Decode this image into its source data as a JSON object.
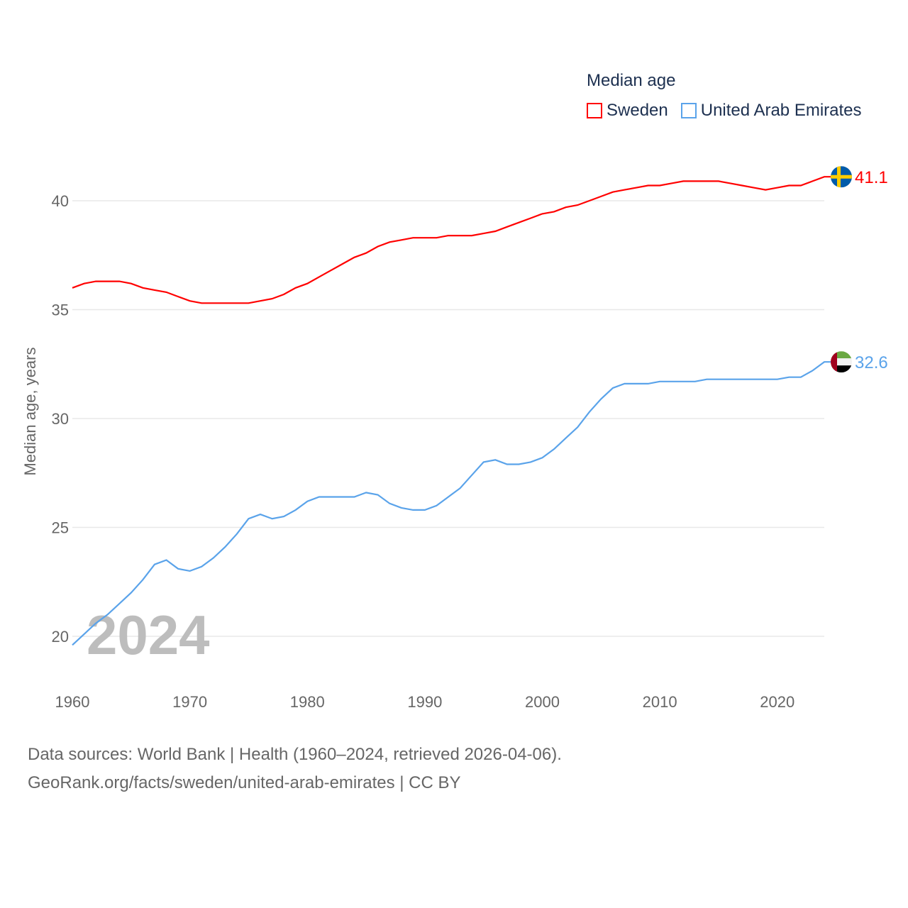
{
  "chart_data": {
    "type": "line",
    "title": "Median age",
    "ylabel": "Median age, years",
    "xlabel": "",
    "xlim": [
      1960,
      2024
    ],
    "ylim": [
      18.9,
      42.2
    ],
    "yticks": [
      20,
      25,
      30,
      35,
      40
    ],
    "xticks": [
      1960,
      1970,
      1980,
      1990,
      2000,
      2010,
      2020
    ],
    "grid": true,
    "legend_position": "top-right",
    "year_watermark": "2024",
    "x": [
      1960,
      1961,
      1962,
      1963,
      1964,
      1965,
      1966,
      1967,
      1968,
      1969,
      1970,
      1971,
      1972,
      1973,
      1974,
      1975,
      1976,
      1977,
      1978,
      1979,
      1980,
      1981,
      1982,
      1983,
      1984,
      1985,
      1986,
      1987,
      1988,
      1989,
      1990,
      1991,
      1992,
      1993,
      1994,
      1995,
      1996,
      1997,
      1998,
      1999,
      2000,
      2001,
      2002,
      2003,
      2004,
      2005,
      2006,
      2007,
      2008,
      2009,
      2010,
      2011,
      2012,
      2013,
      2014,
      2015,
      2016,
      2017,
      2018,
      2019,
      2020,
      2021,
      2022,
      2023,
      2024
    ],
    "series": [
      {
        "name": "Sweden",
        "color": "#ff0000",
        "end_label": "41.1",
        "flag": "sweden",
        "values": [
          36.0,
          36.2,
          36.3,
          36.3,
          36.3,
          36.2,
          36.0,
          35.9,
          35.8,
          35.6,
          35.4,
          35.3,
          35.3,
          35.3,
          35.3,
          35.3,
          35.4,
          35.5,
          35.7,
          36.0,
          36.2,
          36.5,
          36.8,
          37.1,
          37.4,
          37.6,
          37.9,
          38.1,
          38.2,
          38.3,
          38.3,
          38.3,
          38.4,
          38.4,
          38.4,
          38.5,
          38.6,
          38.8,
          39.0,
          39.2,
          39.4,
          39.5,
          39.7,
          39.8,
          40.0,
          40.2,
          40.4,
          40.5,
          40.6,
          40.7,
          40.7,
          40.8,
          40.9,
          40.9,
          40.9,
          40.9,
          40.8,
          40.7,
          40.6,
          40.5,
          40.6,
          40.7,
          40.7,
          40.9,
          41.1
        ]
      },
      {
        "name": "United Arab Emirates",
        "color": "#5aa3ea",
        "end_label": "32.6",
        "flag": "uae",
        "values": [
          19.6,
          20.1,
          20.6,
          21.0,
          21.5,
          22.0,
          22.6,
          23.3,
          23.5,
          23.1,
          23.0,
          23.2,
          23.6,
          24.1,
          24.7,
          25.4,
          25.6,
          25.4,
          25.5,
          25.8,
          26.2,
          26.4,
          26.4,
          26.4,
          26.4,
          26.6,
          26.5,
          26.1,
          25.9,
          25.8,
          25.8,
          26.0,
          26.4,
          26.8,
          27.4,
          28.0,
          28.1,
          27.9,
          27.9,
          28.0,
          28.2,
          28.6,
          29.1,
          29.6,
          30.3,
          30.9,
          31.4,
          31.6,
          31.6,
          31.6,
          31.7,
          31.7,
          31.7,
          31.7,
          31.8,
          31.8,
          31.8,
          31.8,
          31.8,
          31.8,
          31.8,
          31.9,
          31.9,
          32.2,
          32.6
        ]
      }
    ]
  },
  "footer": {
    "line1": "Data sources: World Bank | Health (1960–2024, retrieved 2026-04-06).",
    "line2": "GeoRank.org/facts/sweden/united-arab-emirates | CC BY"
  }
}
